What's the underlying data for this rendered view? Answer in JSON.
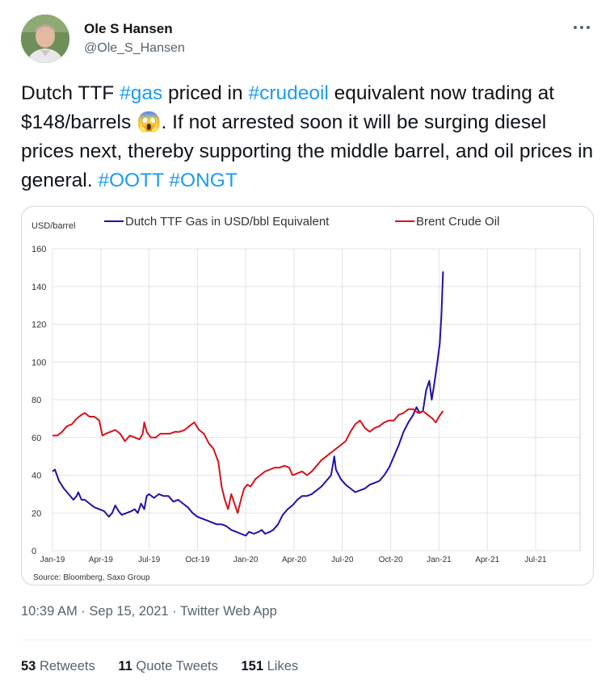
{
  "author": {
    "name": "Ole S Hansen",
    "handle": "@Ole_S_Hansen"
  },
  "more_icon": "more-horizontal-icon",
  "tweet": {
    "parts": [
      {
        "text": "Dutch TTF ",
        "tag": false
      },
      {
        "text": "#gas",
        "tag": true
      },
      {
        "text": " priced in ",
        "tag": false
      },
      {
        "text": "#crudeoil",
        "tag": true
      },
      {
        "text": " equivalent now trading at $148/barrels ",
        "tag": false
      },
      {
        "text": "😱",
        "tag": false,
        "emoji": true
      },
      {
        "text": ". If not arrested soon it will be surging diesel prices next, thereby supporting the middle barrel, and oil prices in general. ",
        "tag": false
      },
      {
        "text": "#OOTT",
        "tag": true
      },
      {
        "text": " ",
        "tag": false
      },
      {
        "text": "#ONGT",
        "tag": true
      }
    ]
  },
  "chart_data": {
    "type": "line",
    "ylabel": "USD/barrel",
    "ylim": [
      0,
      160
    ],
    "yticks": [
      "0",
      "20",
      "40",
      "60",
      "80",
      "100",
      "120",
      "140",
      "160"
    ],
    "xticks": [
      "Jan-19",
      "Apr-19",
      "Jul-19",
      "Oct-19",
      "Jan-20",
      "Apr-20",
      "Jul-20",
      "Oct-20",
      "Jan-21",
      "Apr-21",
      "Jul-21"
    ],
    "grid": true,
    "legend_placement": "top",
    "source": "Source: Bloomberg, Saxo Group",
    "series": [
      {
        "name": "Dutch TTF Gas in USD/bbl Equivalent",
        "color": "#1f11a8",
        "points": [
          [
            0,
            42
          ],
          [
            0.15,
            43
          ],
          [
            0.4,
            37
          ],
          [
            0.7,
            33
          ],
          [
            1.0,
            30
          ],
          [
            1.3,
            27
          ],
          [
            1.5,
            29
          ],
          [
            1.6,
            31
          ],
          [
            1.8,
            27
          ],
          [
            2.0,
            27
          ],
          [
            2.3,
            25
          ],
          [
            2.6,
            23
          ],
          [
            2.9,
            22
          ],
          [
            3.2,
            21
          ],
          [
            3.5,
            18
          ],
          [
            3.7,
            20
          ],
          [
            3.9,
            24
          ],
          [
            4.1,
            21
          ],
          [
            4.3,
            19
          ],
          [
            4.6,
            20
          ],
          [
            4.9,
            21
          ],
          [
            5.1,
            22
          ],
          [
            5.3,
            20
          ],
          [
            5.5,
            25
          ],
          [
            5.7,
            22
          ],
          [
            5.85,
            29
          ],
          [
            6.0,
            30
          ],
          [
            6.3,
            28
          ],
          [
            6.6,
            30
          ],
          [
            6.9,
            29
          ],
          [
            7.2,
            29
          ],
          [
            7.5,
            26
          ],
          [
            7.8,
            27
          ],
          [
            8.1,
            25
          ],
          [
            8.4,
            23
          ],
          [
            8.7,
            20
          ],
          [
            9.0,
            18
          ],
          [
            9.3,
            17
          ],
          [
            9.6,
            16
          ],
          [
            9.9,
            15
          ],
          [
            10.2,
            14
          ],
          [
            10.5,
            14
          ],
          [
            10.8,
            13
          ],
          [
            11.1,
            11
          ],
          [
            11.4,
            10
          ],
          [
            11.7,
            9
          ],
          [
            12.0,
            8
          ],
          [
            12.2,
            10
          ],
          [
            12.5,
            9
          ],
          [
            12.8,
            10
          ],
          [
            13.0,
            11
          ],
          [
            13.2,
            9
          ],
          [
            13.5,
            10
          ],
          [
            13.7,
            11
          ],
          [
            14.0,
            14
          ],
          [
            14.3,
            19
          ],
          [
            14.6,
            22
          ],
          [
            14.9,
            24
          ],
          [
            15.2,
            27
          ],
          [
            15.5,
            29
          ],
          [
            15.8,
            29
          ],
          [
            16.1,
            30
          ],
          [
            16.4,
            32
          ],
          [
            16.7,
            34
          ],
          [
            17.0,
            37
          ],
          [
            17.3,
            40
          ],
          [
            17.5,
            50
          ],
          [
            17.6,
            43
          ],
          [
            17.9,
            38
          ],
          [
            18.2,
            35
          ],
          [
            18.5,
            33
          ],
          [
            18.8,
            31
          ],
          [
            19.1,
            32
          ],
          [
            19.4,
            33
          ],
          [
            19.7,
            35
          ],
          [
            20.0,
            36
          ],
          [
            20.3,
            37
          ],
          [
            20.6,
            40
          ],
          [
            20.9,
            44
          ],
          [
            21.2,
            50
          ],
          [
            21.5,
            56
          ],
          [
            21.8,
            63
          ],
          [
            22.1,
            68
          ],
          [
            22.4,
            72
          ],
          [
            22.6,
            76
          ],
          [
            22.8,
            73
          ],
          [
            23.0,
            74
          ],
          [
            23.2,
            85
          ],
          [
            23.4,
            90
          ],
          [
            23.55,
            80
          ],
          [
            23.7,
            88
          ],
          [
            23.9,
            100
          ],
          [
            24.05,
            110
          ],
          [
            24.15,
            125
          ],
          [
            24.25,
            148
          ]
        ]
      },
      {
        "name": "Brent Crude Oil",
        "color": "#d7121a",
        "points": [
          [
            0,
            61
          ],
          [
            0.3,
            61
          ],
          [
            0.6,
            63
          ],
          [
            0.9,
            66
          ],
          [
            1.2,
            67
          ],
          [
            1.5,
            70
          ],
          [
            1.8,
            72
          ],
          [
            2.0,
            73
          ],
          [
            2.3,
            71
          ],
          [
            2.6,
            71
          ],
          [
            2.9,
            69
          ],
          [
            3.1,
            61
          ],
          [
            3.3,
            62
          ],
          [
            3.6,
            63
          ],
          [
            3.9,
            64
          ],
          [
            4.2,
            62
          ],
          [
            4.5,
            58
          ],
          [
            4.8,
            61
          ],
          [
            5.1,
            60
          ],
          [
            5.4,
            59
          ],
          [
            5.6,
            62
          ],
          [
            5.7,
            68
          ],
          [
            5.85,
            63
          ],
          [
            6.1,
            60
          ],
          [
            6.4,
            60
          ],
          [
            6.7,
            62
          ],
          [
            7.0,
            62
          ],
          [
            7.3,
            62
          ],
          [
            7.6,
            63
          ],
          [
            7.9,
            63
          ],
          [
            8.2,
            64
          ],
          [
            8.5,
            66
          ],
          [
            8.8,
            68
          ],
          [
            9.1,
            64
          ],
          [
            9.4,
            62
          ],
          [
            9.7,
            57
          ],
          [
            10.0,
            54
          ],
          [
            10.3,
            47
          ],
          [
            10.5,
            34
          ],
          [
            10.7,
            27
          ],
          [
            10.9,
            22
          ],
          [
            11.1,
            30
          ],
          [
            11.3,
            25
          ],
          [
            11.5,
            20
          ],
          [
            11.7,
            27
          ],
          [
            11.9,
            33
          ],
          [
            12.1,
            35
          ],
          [
            12.3,
            34
          ],
          [
            12.6,
            38
          ],
          [
            12.9,
            40
          ],
          [
            13.2,
            42
          ],
          [
            13.5,
            43
          ],
          [
            13.8,
            44
          ],
          [
            14.1,
            44
          ],
          [
            14.4,
            45
          ],
          [
            14.7,
            44
          ],
          [
            14.9,
            40
          ],
          [
            15.2,
            41
          ],
          [
            15.5,
            42
          ],
          [
            15.8,
            40
          ],
          [
            16.1,
            42
          ],
          [
            16.4,
            45
          ],
          [
            16.7,
            48
          ],
          [
            17.0,
            50
          ],
          [
            17.3,
            52
          ],
          [
            17.6,
            54
          ],
          [
            17.9,
            56
          ],
          [
            18.2,
            58
          ],
          [
            18.5,
            63
          ],
          [
            18.8,
            67
          ],
          [
            19.1,
            69
          ],
          [
            19.4,
            65
          ],
          [
            19.7,
            63
          ],
          [
            20.0,
            65
          ],
          [
            20.3,
            66
          ],
          [
            20.6,
            68
          ],
          [
            20.9,
            69
          ],
          [
            21.2,
            69
          ],
          [
            21.5,
            72
          ],
          [
            21.8,
            73
          ],
          [
            22.1,
            75
          ],
          [
            22.4,
            75
          ],
          [
            22.7,
            73
          ],
          [
            23.0,
            74
          ],
          [
            23.3,
            72
          ],
          [
            23.6,
            70
          ],
          [
            23.8,
            68
          ],
          [
            24.0,
            71
          ],
          [
            24.25,
            74
          ]
        ]
      }
    ]
  },
  "timestamp": {
    "time": "10:39 AM",
    "sep": " · ",
    "date": "Sep 15, 2021",
    "sep2": " · ",
    "app": "Twitter Web App"
  },
  "stats": {
    "retweets_count": "53",
    "retweets_label": "Retweets",
    "quotes_count": "11",
    "quotes_label": "Quote Tweets",
    "likes_count": "151",
    "likes_label": "Likes"
  }
}
